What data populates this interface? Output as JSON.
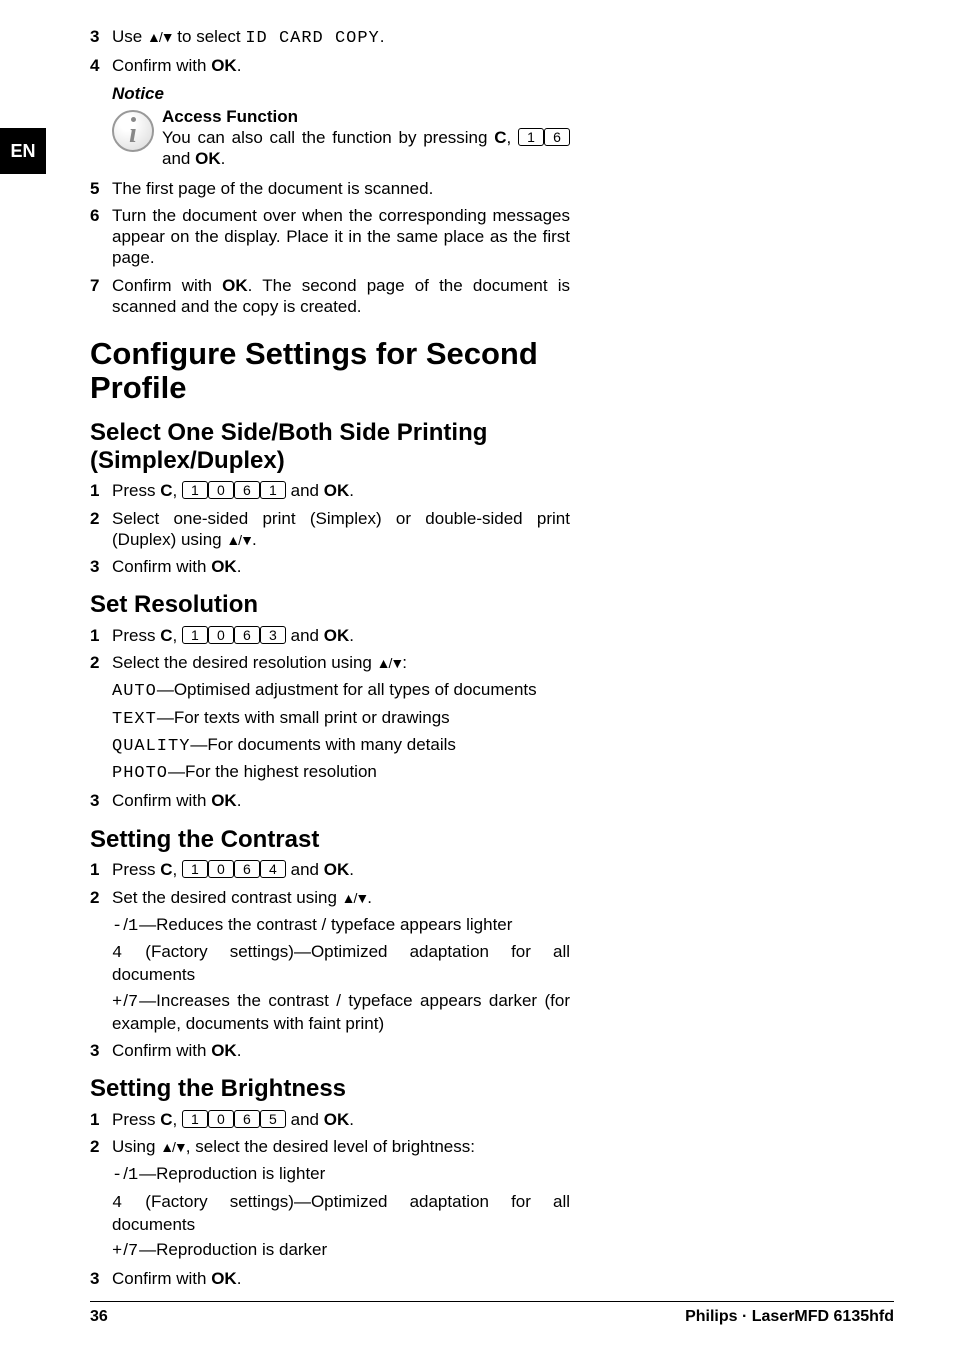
{
  "lang_tab": "EN",
  "steps_top": [
    {
      "num": "3",
      "html": "Use <span class='arrows'>▲/▼</span> to select <span class='lcd'>ID CARD COPY</span>."
    },
    {
      "num": "4",
      "html": "Confirm with <b>OK</b>."
    }
  ],
  "notice": {
    "label": "Notice",
    "title": "Access Function",
    "body_html": "You can also call the function by pressing <b>C</b>, <span class='key'>1</span><span class='key'>6</span> and <b>OK</b>."
  },
  "steps_mid": [
    {
      "num": "5",
      "html": "The first page of the document is scanned."
    },
    {
      "num": "6",
      "html": "Turn the document over when the corresponding messages appear on the display. Place it in the same place as the first page."
    },
    {
      "num": "7",
      "html": "Confirm with <b>OK</b>. The second page of the document is scanned and the copy is created."
    }
  ],
  "h1": "Configure Settings for Second Profile",
  "sec1": {
    "h2": "Select One Side/Both Side Printing (Simplex/Duplex)",
    "steps": [
      {
        "num": "1",
        "html": "Press <b>C</b>, <span class='key'>1</span><span class='key'>0</span><span class='key'>6</span><span class='key'>1</span> and <b>OK</b>."
      },
      {
        "num": "2",
        "html": "Select one-sided print (Simplex) or double-sided print (Duplex) using <span class='arrows'>▲/▼</span>."
      },
      {
        "num": "3",
        "html": "Confirm with <b>OK</b>."
      }
    ]
  },
  "sec2": {
    "h2": "Set Resolution",
    "steps": [
      {
        "num": "1",
        "html": "Press <b>C</b>, <span class='key'>1</span><span class='key'>0</span><span class='key'>6</span><span class='key'>3</span> and <b>OK</b>."
      },
      {
        "num": "2",
        "html": "Select the desired resolution using <span class='arrows'>▲/▼</span>:",
        "subs": [
          "<span class='lcd'>AUTO</span>—Optimised adjustment for all types of documents",
          "<span class='lcd'>TEXT</span>—For texts with small print or drawings",
          "<span class='lcd'>QUALITY</span>—For documents with many details",
          "<span class='lcd'>PHOTO</span>—For the highest resolution"
        ]
      },
      {
        "num": "3",
        "html": "Confirm with <b>OK</b>."
      }
    ]
  },
  "sec3": {
    "h2": "Setting the Contrast",
    "steps": [
      {
        "num": "1",
        "html": "Press <b>C</b>, <span class='key'>1</span><span class='key'>0</span><span class='key'>6</span><span class='key'>4</span> and <b>OK</b>."
      },
      {
        "num": "2",
        "html": "Set the desired contrast using <span class='arrows'>▲/▼</span>.",
        "subs": [
          "<span class='lcd'>-</span>/<span class='lcd'>1</span>—Reduces the contrast / typeface appears lighter",
          "<span class='lcd'>4</span> (Factory settings)—Optimized adaptation for all documents",
          "<span class='lcd'>+</span>/<span class='lcd'>7</span>—Increases the contrast / typeface appears darker (for example, documents with faint print)"
        ]
      },
      {
        "num": "3",
        "html": "Confirm with <b>OK</b>."
      }
    ]
  },
  "sec4": {
    "h2": "Setting the Brightness",
    "steps": [
      {
        "num": "1",
        "html": "Press <b>C</b>, <span class='key'>1</span><span class='key'>0</span><span class='key'>6</span><span class='key'>5</span> and <b>OK</b>."
      },
      {
        "num": "2",
        "html": "Using <span class='arrows'>▲/▼</span>, select the desired level of brightness:",
        "subs": [
          "<span class='lcd'>-</span>/<span class='lcd'>1</span>—Reproduction is lighter",
          "<span class='lcd'>4</span> (Factory settings)—Optimized adaptation for all documents",
          "<span class='lcd'>+</span>/<span class='lcd'>7</span>—Reproduction is darker"
        ]
      },
      {
        "num": "3",
        "html": "Confirm with <b>OK</b>."
      }
    ]
  },
  "footer": {
    "page": "36",
    "model": "Philips · LaserMFD 6135hfd"
  }
}
